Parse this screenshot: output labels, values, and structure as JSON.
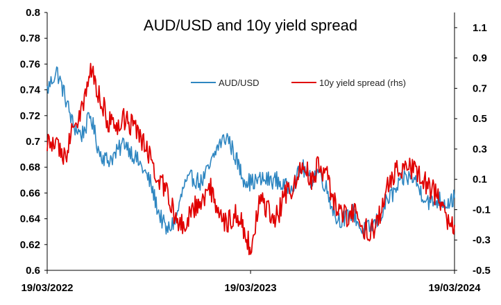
{
  "chart_data": {
    "type": "line",
    "title": "AUD/USD and 10y yield spread",
    "x_tick_labels": [
      "19/03/2022",
      "19/03/2023",
      "19/03/2024"
    ],
    "x_range": [
      "2022-03-19",
      "2024-03-19"
    ],
    "y_left": {
      "range": [
        0.6,
        0.8
      ],
      "ticks": [
        "0.6",
        "0.62",
        "0.64",
        "0.66",
        "0.68",
        "0.7",
        "0.72",
        "0.74",
        "0.76",
        "0.78",
        "0.8"
      ]
    },
    "y_right": {
      "range": [
        -0.5,
        1.2
      ],
      "ticks": [
        "-0.5",
        "-0.3",
        "-0.1",
        "0.1",
        "0.3",
        "0.5",
        "0.7",
        "0.9",
        "1.1"
      ]
    },
    "legend_position": "upper-right",
    "grid": false,
    "series": [
      {
        "name": "AUD/USD",
        "axis": "left",
        "color": "#2E86C1",
        "points": [
          [
            "2022-03-19",
            0.74
          ],
          [
            "2022-04-05",
            0.755
          ],
          [
            "2022-04-20",
            0.735
          ],
          [
            "2022-05-05",
            0.712
          ],
          [
            "2022-05-20",
            0.705
          ],
          [
            "2022-06-05",
            0.72
          ],
          [
            "2022-06-20",
            0.692
          ],
          [
            "2022-07-05",
            0.685
          ],
          [
            "2022-07-20",
            0.69
          ],
          [
            "2022-08-05",
            0.7
          ],
          [
            "2022-08-20",
            0.69
          ],
          [
            "2022-09-05",
            0.68
          ],
          [
            "2022-09-20",
            0.668
          ],
          [
            "2022-10-05",
            0.645
          ],
          [
            "2022-10-20",
            0.63
          ],
          [
            "2022-11-05",
            0.64
          ],
          [
            "2022-11-20",
            0.666
          ],
          [
            "2022-12-05",
            0.672
          ],
          [
            "2022-12-20",
            0.668
          ],
          [
            "2023-01-05",
            0.68
          ],
          [
            "2023-01-20",
            0.697
          ],
          [
            "2023-02-05",
            0.704
          ],
          [
            "2023-02-20",
            0.688
          ],
          [
            "2023-03-05",
            0.672
          ],
          [
            "2023-03-19",
            0.668
          ],
          [
            "2023-04-05",
            0.67
          ],
          [
            "2023-04-20",
            0.67
          ],
          [
            "2023-05-05",
            0.67
          ],
          [
            "2023-05-20",
            0.664
          ],
          [
            "2023-06-05",
            0.668
          ],
          [
            "2023-06-20",
            0.68
          ],
          [
            "2023-07-05",
            0.67
          ],
          [
            "2023-07-20",
            0.678
          ],
          [
            "2023-08-05",
            0.66
          ],
          [
            "2023-08-20",
            0.64
          ],
          [
            "2023-09-05",
            0.64
          ],
          [
            "2023-09-20",
            0.645
          ],
          [
            "2023-10-05",
            0.63
          ],
          [
            "2023-10-20",
            0.633
          ],
          [
            "2023-11-05",
            0.64
          ],
          [
            "2023-11-20",
            0.655
          ],
          [
            "2023-12-05",
            0.662
          ],
          [
            "2023-12-20",
            0.672
          ],
          [
            "2024-01-05",
            0.672
          ],
          [
            "2024-01-20",
            0.66
          ],
          [
            "2024-02-05",
            0.652
          ],
          [
            "2024-02-20",
            0.655
          ],
          [
            "2024-03-05",
            0.652
          ],
          [
            "2024-03-19",
            0.656
          ]
        ]
      },
      {
        "name": "10y yield spread (rhs)",
        "axis": "right",
        "color": "#E00000",
        "points": [
          [
            "2022-03-19",
            0.35
          ],
          [
            "2022-04-05",
            0.3
          ],
          [
            "2022-04-20",
            0.25
          ],
          [
            "2022-05-05",
            0.45
          ],
          [
            "2022-05-20",
            0.55
          ],
          [
            "2022-06-05",
            0.85
          ],
          [
            "2022-06-20",
            0.65
          ],
          [
            "2022-07-05",
            0.5
          ],
          [
            "2022-07-20",
            0.4
          ],
          [
            "2022-08-05",
            0.5
          ],
          [
            "2022-08-20",
            0.45
          ],
          [
            "2022-09-05",
            0.35
          ],
          [
            "2022-09-20",
            0.25
          ],
          [
            "2022-10-05",
            0.1
          ],
          [
            "2022-10-20",
            0.0
          ],
          [
            "2022-11-05",
            -0.15
          ],
          [
            "2022-11-20",
            -0.2
          ],
          [
            "2022-12-05",
            -0.1
          ],
          [
            "2022-12-20",
            -0.05
          ],
          [
            "2023-01-05",
            0.05
          ],
          [
            "2023-01-20",
            -0.1
          ],
          [
            "2023-02-05",
            -0.2
          ],
          [
            "2023-02-20",
            -0.1
          ],
          [
            "2023-03-05",
            -0.2
          ],
          [
            "2023-03-19",
            -0.35
          ],
          [
            "2023-04-05",
            -0.05
          ],
          [
            "2023-04-20",
            -0.1
          ],
          [
            "2023-05-05",
            -0.15
          ],
          [
            "2023-05-20",
            0.0
          ],
          [
            "2023-06-05",
            0.05
          ],
          [
            "2023-06-20",
            0.2
          ],
          [
            "2023-07-05",
            0.1
          ],
          [
            "2023-07-20",
            0.2
          ],
          [
            "2023-08-05",
            0.1
          ],
          [
            "2023-08-20",
            -0.1
          ],
          [
            "2023-09-05",
            -0.15
          ],
          [
            "2023-09-20",
            -0.12
          ],
          [
            "2023-10-05",
            -0.2
          ],
          [
            "2023-10-20",
            -0.25
          ],
          [
            "2023-11-05",
            -0.15
          ],
          [
            "2023-11-20",
            0.05
          ],
          [
            "2023-12-05",
            0.15
          ],
          [
            "2023-12-20",
            0.2
          ],
          [
            "2024-01-05",
            0.18
          ],
          [
            "2024-01-20",
            0.1
          ],
          [
            "2024-02-05",
            0.05
          ],
          [
            "2024-02-20",
            -0.05
          ],
          [
            "2024-03-05",
            -0.15
          ],
          [
            "2024-03-19",
            -0.2
          ]
        ]
      }
    ]
  }
}
